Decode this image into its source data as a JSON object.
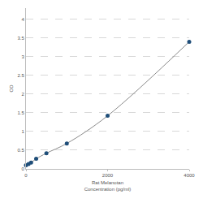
{
  "chart_data": {
    "type": "line",
    "x_label": "Rat Melanotan\nConcentration (pg/ml)",
    "y_label": "OD",
    "x": [
      0,
      62.5,
      125,
      250,
      500,
      1000,
      2000,
      4000
    ],
    "values": [
      0.1,
      0.13,
      0.17,
      0.27,
      0.42,
      0.68,
      1.42,
      3.4
    ],
    "color": "#1f4e79",
    "marker": "circle",
    "xlim": [
      0,
      4000
    ],
    "xticks": [
      0,
      2000,
      4000
    ],
    "ylim": [
      0,
      4.3
    ],
    "yticks": [
      0,
      0.5,
      1,
      1.5,
      2,
      2.5,
      3,
      3.5,
      4
    ],
    "grid": true
  }
}
